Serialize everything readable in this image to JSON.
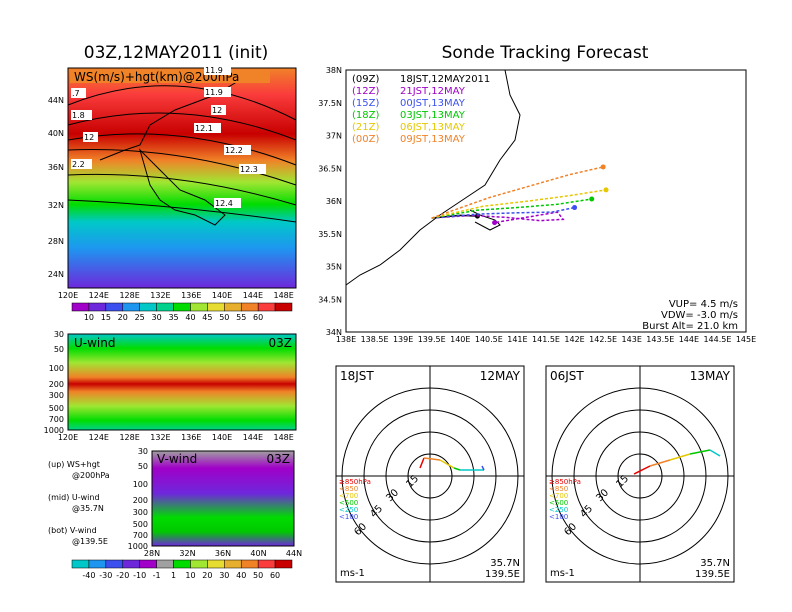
{
  "left_title": "03Z,12MAY2011 (init)",
  "right_title": "Sonde Tracking Forecast",
  "map_panel": {
    "label": "WS(m/s)+hgt(km)@200hPa",
    "contour_labels": [
      "11.9",
      "11.9",
      "12",
      "12.1",
      "12.2",
      "12.3",
      "12.4",
      ".7",
      "1.8",
      "12",
      "2.2"
    ],
    "lat_ticks": [
      "44N",
      "40N",
      "36N",
      "32N",
      "28N",
      "24N"
    ],
    "lon_ticks": [
      "120E",
      "124E",
      "128E",
      "132E",
      "136E",
      "140E",
      "144E",
      "148E"
    ],
    "colorbar_labels": [
      "10",
      "15",
      "20",
      "25",
      "30",
      "35",
      "40",
      "45",
      "50",
      "55",
      "60"
    ],
    "colorbar_colors": [
      "#a000c8",
      "#6e28dc",
      "#3c50f0",
      "#1e96f0",
      "#00c8c8",
      "#00d28c",
      "#00dc00",
      "#a0e632",
      "#e6dc32",
      "#e6af2d",
      "#f08228",
      "#fa3c3c",
      "#c80000"
    ]
  },
  "uwind_panel": {
    "label": "U-wind",
    "time": "03Z",
    "y_ticks": [
      "30",
      "50",
      "100",
      "200",
      "300",
      "500",
      "700",
      "1000"
    ],
    "x_ticks": [
      "120E",
      "124E",
      "128E",
      "132E",
      "136E",
      "140E",
      "144E",
      "148E"
    ]
  },
  "vwind_panel": {
    "label": "V-wind",
    "time": "03Z",
    "y_ticks": [
      "30",
      "50",
      "100",
      "200",
      "300",
      "500",
      "700",
      "1000"
    ],
    "x_ticks": [
      "28N",
      "32N",
      "36N",
      "40N",
      "44N"
    ],
    "colorbar_labels": [
      "-40",
      "-30",
      "-20",
      "-10",
      "-1",
      "1",
      "10",
      "20",
      "30",
      "40",
      "50",
      "60"
    ]
  },
  "legend_notes": [
    {
      "line1": "(up) WS+hgt",
      "line2": "@200hPa"
    },
    {
      "line1": "(mid) U-wind",
      "line2": "@35.7N"
    },
    {
      "line1": "(bot) V-wind",
      "line2": "@139.5E"
    }
  ],
  "track_panel": {
    "y_ticks": [
      "38N",
      "37.5N",
      "37N",
      "36.5N",
      "36N",
      "35.5N",
      "35N",
      "34.5N",
      "34N"
    ],
    "x_ticks": [
      "138E",
      "138.5E",
      "139E",
      "139.5E",
      "140E",
      "140.5E",
      "141E",
      "141.5E",
      "142E",
      "142.5E",
      "143E",
      "143.5E",
      "144E",
      "144.5E",
      "145E"
    ],
    "legend": [
      {
        "utc": "(09Z)",
        "jst": "18JST,12MAY2011",
        "color": "#000000"
      },
      {
        "utc": "(12Z)",
        "jst": "21JST,12MAY",
        "color": "#a000c8"
      },
      {
        "utc": "(15Z)",
        "jst": "00JST,13MAY",
        "color": "#3c50f0"
      },
      {
        "utc": "(18Z)",
        "jst": "03JST,13MAY",
        "color": "#00c800"
      },
      {
        "utc": "(21Z)",
        "jst": "06JST,13MAY",
        "color": "#e6c800"
      },
      {
        "utc": "(00Z)",
        "jst": "09JST,13MAY",
        "color": "#f08228"
      }
    ],
    "params": [
      "VUP= 4.5 m/s",
      "VDW= -3.0 m/s",
      "Burst Alt= 21.0 km"
    ]
  },
  "hodo_left": {
    "time": "18JST",
    "date": "12MAY",
    "rings": [
      "15",
      "30",
      "45",
      "60"
    ],
    "unit": "ms-1",
    "lat": "35.7N",
    "lon": "139.5E"
  },
  "hodo_right": {
    "time": "06JST",
    "date": "13MAY",
    "rings": [
      "15",
      "30",
      "45",
      "60"
    ],
    "unit": "ms-1",
    "lat": "35.7N",
    "lon": "139.5E"
  },
  "hodo_levels": [
    {
      "label": "≥850hPa",
      "color": "#e60000"
    },
    {
      "label": "<850",
      "color": "#f08228"
    },
    {
      "label": "<700",
      "color": "#e6c800"
    },
    {
      "label": "<500",
      "color": "#00c800"
    },
    {
      "label": "<250",
      "color": "#00c8c8"
    },
    {
      "label": "<100",
      "color": "#3c50f0"
    }
  ],
  "chart_data": [
    {
      "type": "line",
      "title": "Sonde Tracking Forecast",
      "xlabel": "",
      "ylabel": "",
      "xlim": [
        138,
        145
      ],
      "ylim": [
        34,
        38
      ],
      "series": [
        {
          "name": "(09Z) 18JST,12MAY2011",
          "x": [
            139.5,
            140.0,
            140.3
          ],
          "y": [
            35.74,
            35.78,
            35.77
          ]
        },
        {
          "name": "(12Z) 21JST,12MAY",
          "x": [
            139.5,
            140.2,
            140.8,
            141.4,
            141.8,
            141.7,
            140.6
          ],
          "y": [
            35.74,
            35.78,
            35.75,
            35.7,
            35.72,
            35.83,
            35.67
          ]
        },
        {
          "name": "(15Z) 00JST,13MAY",
          "x": [
            139.5,
            140.3,
            141.0,
            141.6,
            142.0
          ],
          "y": [
            35.74,
            35.8,
            35.82,
            35.83,
            35.9
          ]
        },
        {
          "name": "(18Z) 03JST,13MAY",
          "x": [
            139.5,
            140.3,
            141.0,
            141.7,
            142.3
          ],
          "y": [
            35.74,
            35.86,
            35.9,
            35.95,
            36.03
          ]
        },
        {
          "name": "(21Z) 06JST,13MAY",
          "x": [
            139.5,
            140.4,
            141.2,
            141.9,
            142.55
          ],
          "y": [
            35.74,
            35.92,
            36.0,
            36.08,
            36.17
          ]
        },
        {
          "name": "(00Z) 09JST,13MAY",
          "x": [
            139.5,
            140.5,
            141.3,
            141.9,
            142.5
          ],
          "y": [
            35.74,
            36.05,
            36.25,
            36.4,
            36.52
          ]
        }
      ]
    }
  ]
}
